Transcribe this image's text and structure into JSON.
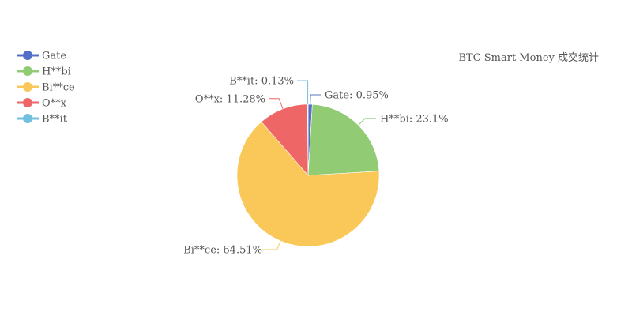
{
  "chart_data": {
    "type": "pie",
    "title": "BTC Smart Money 成交统计",
    "legend_position": "top-left",
    "slices": [
      {
        "name": "Gate",
        "value": 0.95,
        "label": "Gate: 0.95%",
        "color": "#5470c6"
      },
      {
        "name": "H**bi",
        "value": 23.1,
        "label": "H**bi: 23.1%",
        "color": "#91cc75"
      },
      {
        "name": "Bi**ce",
        "value": 64.51,
        "label": "Bi**ce: 64.51%",
        "color": "#fac858"
      },
      {
        "name": "O**x",
        "value": 11.28,
        "label": "O**x: 11.28%",
        "color": "#ee6666"
      },
      {
        "name": "B**it",
        "value": 0.13,
        "label": "B**it: 0.13%",
        "color": "#73c0de"
      }
    ]
  }
}
